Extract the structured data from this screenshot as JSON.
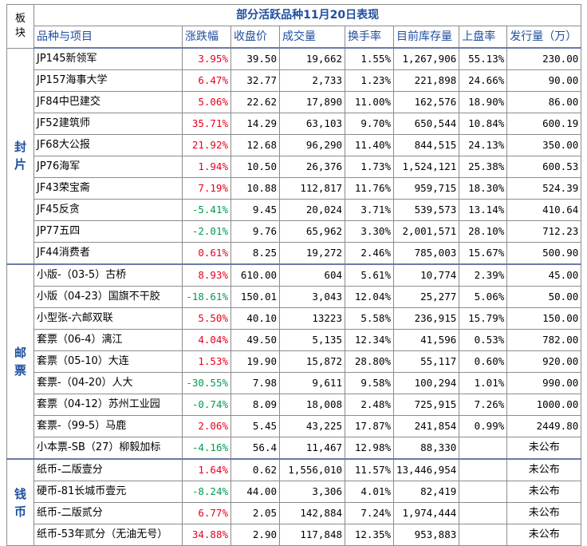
{
  "title": "部分活跃品种11月20日表现",
  "board_header": [
    "板",
    "块"
  ],
  "headers": [
    "品种与项目",
    "涨跌幅",
    "收盘价",
    "成交量",
    "换手率",
    "目前库存量",
    "上盘率",
    "发行量（万）"
  ],
  "sections": [
    {
      "label": [
        "封",
        "片"
      ],
      "rows": [
        {
          "name": "JP145新领军",
          "change": "3.95%",
          "dir": "pos",
          "close": "39.50",
          "volume": "19,662",
          "turnover": "1.55%",
          "stock": "1,267,906",
          "rate": "55.13%",
          "issue": "230.00"
        },
        {
          "name": "JP157海事大学",
          "change": "6.47%",
          "dir": "pos",
          "close": "32.77",
          "volume": "2,733",
          "turnover": "1.23%",
          "stock": "221,898",
          "rate": "24.66%",
          "issue": "90.00"
        },
        {
          "name": "JF84中巴建交",
          "change": "5.06%",
          "dir": "pos",
          "close": "22.62",
          "volume": "17,890",
          "turnover": "11.00%",
          "stock": "162,576",
          "rate": "18.90%",
          "issue": "86.00"
        },
        {
          "name": "JF52建筑师",
          "change": "35.71%",
          "dir": "pos",
          "close": "14.29",
          "volume": "63,103",
          "turnover": "9.70%",
          "stock": "650,544",
          "rate": "10.84%",
          "issue": "600.19"
        },
        {
          "name": "JF68大公报",
          "change": "21.92%",
          "dir": "pos",
          "close": "12.68",
          "volume": "96,290",
          "turnover": "11.40%",
          "stock": "844,515",
          "rate": "24.13%",
          "issue": "350.00"
        },
        {
          "name": "JP76海军",
          "change": "1.94%",
          "dir": "pos",
          "close": "10.50",
          "volume": "26,376",
          "turnover": "1.73%",
          "stock": "1,524,121",
          "rate": "25.38%",
          "issue": "600.53"
        },
        {
          "name": "JF43荣宝斋",
          "change": "7.19%",
          "dir": "pos",
          "close": "10.88",
          "volume": "112,817",
          "turnover": "11.76%",
          "stock": "959,715",
          "rate": "18.30%",
          "issue": "524.39"
        },
        {
          "name": "JF45反贪",
          "change": "-5.41%",
          "dir": "neg",
          "close": "9.45",
          "volume": "20,024",
          "turnover": "3.71%",
          "stock": "539,573",
          "rate": "13.14%",
          "issue": "410.64"
        },
        {
          "name": "JP77五四",
          "change": "-2.01%",
          "dir": "neg",
          "close": "9.76",
          "volume": "65,962",
          "turnover": "3.30%",
          "stock": "2,001,571",
          "rate": "28.10%",
          "issue": "712.23"
        },
        {
          "name": "JF44消费者",
          "change": "0.61%",
          "dir": "pos",
          "close": "8.25",
          "volume": "19,272",
          "turnover": "2.46%",
          "stock": "785,003",
          "rate": "15.67%",
          "issue": "500.90"
        }
      ]
    },
    {
      "label": [
        "邮",
        "票"
      ],
      "rows": [
        {
          "name": "小版-（03-5）古桥",
          "change": "8.93%",
          "dir": "pos",
          "close": "610.00",
          "volume": "604",
          "turnover": "5.61%",
          "stock": "10,774",
          "rate": "2.39%",
          "issue": "45.00"
        },
        {
          "name": "小版（04-23）国旗不干胶",
          "change": "-18.61%",
          "dir": "neg",
          "close": "150.01",
          "volume": "3,043",
          "turnover": "12.04%",
          "stock": "25,277",
          "rate": "5.06%",
          "issue": "50.00"
        },
        {
          "name": "小型张-六邮双联",
          "change": "5.50%",
          "dir": "pos",
          "close": "40.10",
          "volume": "13223",
          "turnover": "5.58%",
          "stock": "236,915",
          "rate": "15.79%",
          "issue": "150.00"
        },
        {
          "name": "套票（06-4）漓江",
          "change": "4.04%",
          "dir": "pos",
          "close": "49.50",
          "volume": "5,135",
          "turnover": "12.34%",
          "stock": "41,596",
          "rate": "0.53%",
          "issue": "782.00"
        },
        {
          "name": "套票（05-10）大连",
          "change": "1.53%",
          "dir": "pos",
          "close": "19.90",
          "volume": "15,872",
          "turnover": "28.80%",
          "stock": "55,117",
          "rate": "0.60%",
          "issue": "920.00"
        },
        {
          "name": "套票-（04-20）人大",
          "change": "-30.55%",
          "dir": "neg",
          "close": "7.98",
          "volume": "9,611",
          "turnover": "9.58%",
          "stock": "100,294",
          "rate": "1.01%",
          "issue": "990.00"
        },
        {
          "name": "套票（04-12）苏州工业园",
          "change": "-0.74%",
          "dir": "neg",
          "close": "8.09",
          "volume": "18,008",
          "turnover": "2.48%",
          "stock": "725,915",
          "rate": "7.26%",
          "issue": "1000.00"
        },
        {
          "name": "套票-（99-5）马鹿",
          "change": "2.06%",
          "dir": "pos",
          "close": "5.45",
          "volume": "43,225",
          "turnover": "17.87%",
          "stock": "241,854",
          "rate": "0.99%",
          "issue": "2449.80"
        },
        {
          "name": "小本票-SB（27）柳毅加标",
          "change": "-4.16%",
          "dir": "neg",
          "close": "56.4",
          "volume": "11,467",
          "turnover": "12.98%",
          "stock": "88,330",
          "rate": "",
          "issue": "未公布"
        }
      ]
    },
    {
      "label": [
        "钱",
        "币"
      ],
      "rows": [
        {
          "name": "纸币-二版壹分",
          "change": "1.64%",
          "dir": "pos",
          "close": "0.62",
          "volume": "1,556,010",
          "turnover": "11.57%",
          "stock": "13,446,954",
          "rate": "",
          "issue": "未公布"
        },
        {
          "name": "硬币-81长城币壹元",
          "change": "-8.24%",
          "dir": "neg",
          "close": "44.00",
          "volume": "3,306",
          "turnover": "4.01%",
          "stock": "82,419",
          "rate": "",
          "issue": "未公布"
        },
        {
          "name": "纸币-二版贰分",
          "change": "6.77%",
          "dir": "pos",
          "close": "2.05",
          "volume": "142,884",
          "turnover": "7.24%",
          "stock": "1,974,444",
          "rate": "",
          "issue": "未公布"
        },
        {
          "name": "纸币-53年贰分（无油无号）",
          "change": "34.88%",
          "dir": "pos",
          "close": "2.90",
          "volume": "117,848",
          "turnover": "12.35%",
          "stock": "953,883",
          "rate": "",
          "issue": "未公布"
        }
      ]
    }
  ],
  "colors": {
    "up": "#e8001c",
    "down": "#009a4e",
    "header": "#1f4e9e"
  }
}
